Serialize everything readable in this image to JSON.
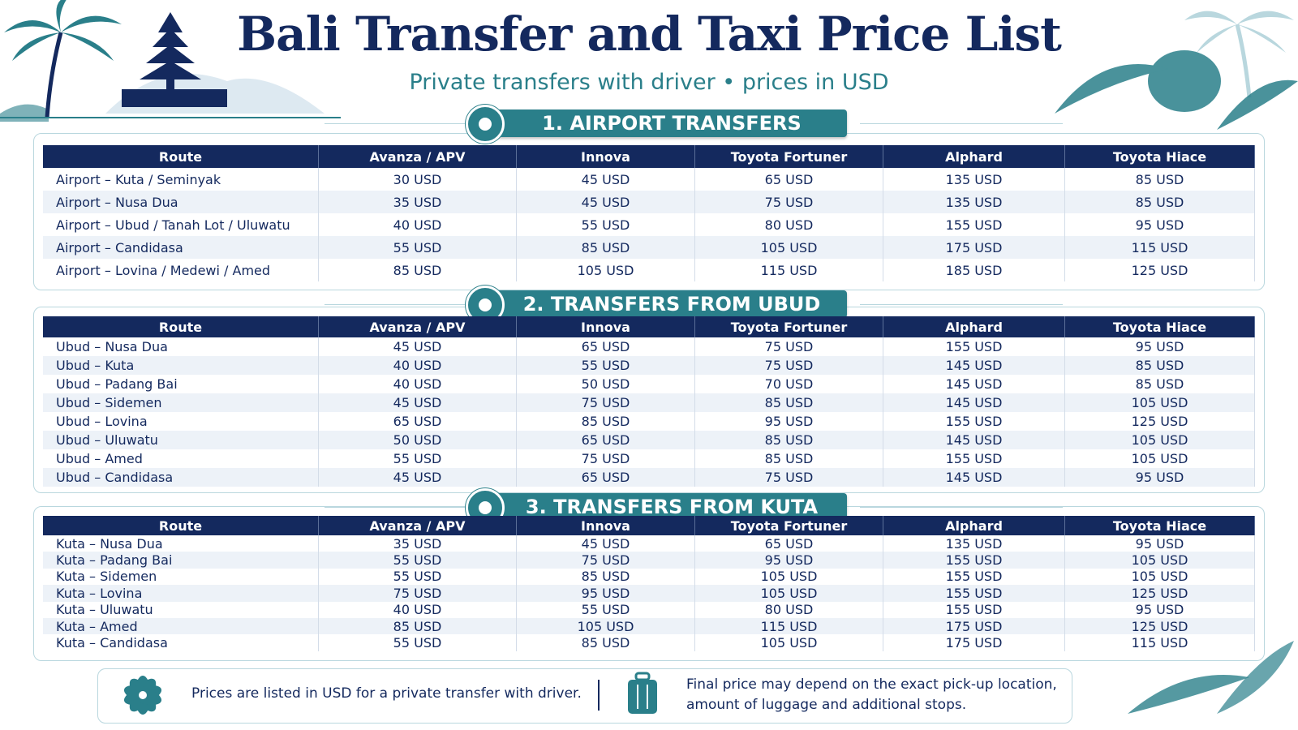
{
  "header": {
    "title": "Bali Transfer and Taxi Price List",
    "subtitle": "Private transfers with driver • prices in USD"
  },
  "sections": [
    {
      "title": "1. AIRPORT TRANSFERS",
      "columns": [
        "Route",
        "Avanza / APV",
        "Innova",
        "Toyota Fortuner",
        "Alphard",
        "Toyota Hiace"
      ],
      "rows": [
        [
          "Airport – Kuta / Seminyak",
          "30 USD",
          "45 USD",
          "65 USD",
          "135 USD",
          "85 USD"
        ],
        [
          "Airport – Nusa Dua",
          "35 USD",
          "45 USD",
          "75 USD",
          "135 USD",
          "85 USD"
        ],
        [
          "Airport – Ubud / Tanah Lot / Uluwatu",
          "40 USD",
          "55 USD",
          "80 USD",
          "155 USD",
          "95 USD"
        ],
        [
          "Airport – Candidasa",
          "55 USD",
          "85 USD",
          "105 USD",
          "175 USD",
          "115 USD"
        ],
        [
          "Airport – Lovina / Medewi / Amed",
          "85 USD",
          "105 USD",
          "115 USD",
          "185 USD",
          "125 USD"
        ]
      ]
    },
    {
      "title": "2. TRANSFERS FROM UBUD",
      "columns": [
        "Route",
        "Avanza / APV",
        "Innova",
        "Toyota Fortuner",
        "Alphard",
        "Toyota Hiace"
      ],
      "rows": [
        [
          "Ubud – Nusa Dua",
          "45 USD",
          "65 USD",
          "75 USD",
          "155 USD",
          "95 USD"
        ],
        [
          "Ubud – Kuta",
          "40 USD",
          "55 USD",
          "75 USD",
          "145 USD",
          "85 USD"
        ],
        [
          "Ubud – Padang Bai",
          "40 USD",
          "50 USD",
          "70 USD",
          "145 USD",
          "85 USD"
        ],
        [
          "Ubud – Sidemen",
          "45 USD",
          "75 USD",
          "85 USD",
          "145 USD",
          "105 USD"
        ],
        [
          "Ubud – Lovina",
          "65 USD",
          "85 USD",
          "95 USD",
          "155 USD",
          "125 USD"
        ],
        [
          "Ubud – Uluwatu",
          "50 USD",
          "65 USD",
          "85 USD",
          "145 USD",
          "105 USD"
        ],
        [
          "Ubud – Amed",
          "55 USD",
          "75 USD",
          "85 USD",
          "155 USD",
          "105 USD"
        ],
        [
          "Ubud – Candidasa",
          "45 USD",
          "65 USD",
          "75 USD",
          "145 USD",
          "95 USD"
        ]
      ]
    },
    {
      "title": "3. TRANSFERS FROM KUTA",
      "columns": [
        "Route",
        "Avanza / APV",
        "Innova",
        "Toyota Fortuner",
        "Alphard",
        "Toyota Hiace"
      ],
      "rows": [
        [
          "Kuta – Nusa Dua",
          "35 USD",
          "45 USD",
          "65 USD",
          "135 USD",
          "95 USD"
        ],
        [
          "Kuta – Padang Bai",
          "55 USD",
          "75 USD",
          "95 USD",
          "155 USD",
          "105 USD"
        ],
        [
          "Kuta – Sidemen",
          "55 USD",
          "85 USD",
          "105 USD",
          "155 USD",
          "105 USD"
        ],
        [
          "Kuta – Lovina",
          "75 USD",
          "95 USD",
          "105 USD",
          "155 USD",
          "125 USD"
        ],
        [
          "Kuta – Uluwatu",
          "40 USD",
          "55 USD",
          "80 USD",
          "155 USD",
          "95 USD"
        ],
        [
          "Kuta – Amed",
          "85 USD",
          "105 USD",
          "115 USD",
          "175 USD",
          "125 USD"
        ],
        [
          "Kuta – Candidasa",
          "55 USD",
          "85 USD",
          "105 USD",
          "175 USD",
          "115 USD"
        ]
      ]
    }
  ],
  "footer": {
    "note_prices": "Prices are listed in USD for a private transfer with driver.",
    "note_final": "Final price may depend on the exact pick-up location, amount of luggage and additional stops."
  }
}
